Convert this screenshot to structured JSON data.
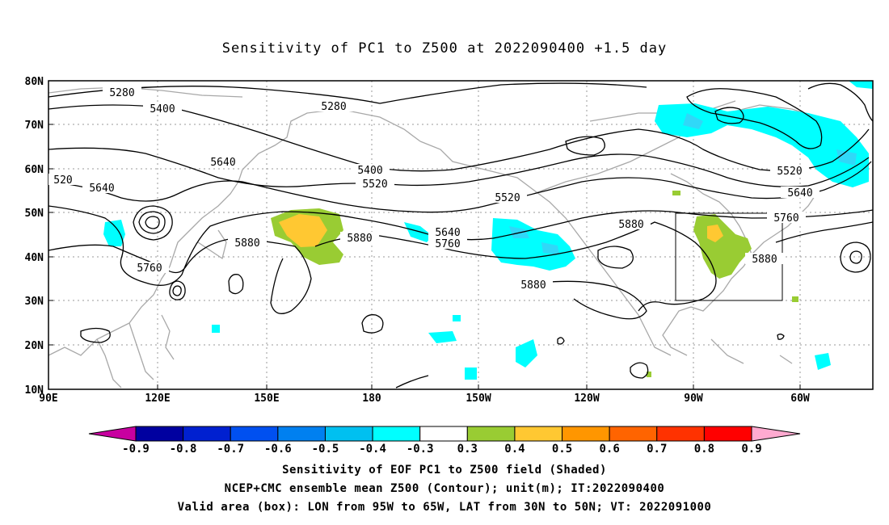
{
  "title": "Sensitivity of PC1 to Z500 at 2022090400 +1.5 day",
  "map": {
    "lat_labels": [
      "80N",
      "70N",
      "60N",
      "50N",
      "40N",
      "30N",
      "20N",
      "10N"
    ],
    "lon_labels": [
      "90E",
      "120E",
      "150E",
      "180",
      "150W",
      "120W",
      "90W",
      "60W"
    ],
    "contour_labels": [
      "5280",
      "5280",
      "5400",
      "520",
      "5640",
      "5400",
      "5520",
      "5520",
      "5520",
      "5640",
      "5640",
      "5760",
      "5880",
      "5880",
      "5880",
      "5880",
      "5760",
      "5640",
      "5760",
      "5880",
      "5880"
    ],
    "valid_box": {
      "lon_min": -95,
      "lon_max": -65,
      "lat_min": 30,
      "lat_max": 50
    }
  },
  "colorbar": {
    "labels": [
      "-0.9",
      "-0.8",
      "-0.7",
      "-0.6",
      "-0.5",
      "-0.4",
      "-0.3",
      "0.3",
      "0.4",
      "0.5",
      "0.6",
      "0.7",
      "0.8",
      "0.9"
    ],
    "colors": [
      "#0000a0",
      "#0020d0",
      "#0050f0",
      "#0080f0",
      "#00c0f0",
      "#00ffff",
      "#ffffff",
      "#99cc33",
      "#ffc832",
      "#ff9600",
      "#ff6400",
      "#ff3200",
      "#ff0000"
    ],
    "neg_end_color": "#c800a0",
    "pos_end_color": "#ffaad0"
  },
  "footer": {
    "line1": "Sensitivity of EOF PC1 to Z500 field (Shaded)",
    "line2": "NCEP+CMC ensemble mean Z500 (Contour); unit(m); IT:2022090400",
    "line3": "Valid area (box): LON from 95W to 65W, LAT from 30N to 50N; VT: 2022091000"
  }
}
